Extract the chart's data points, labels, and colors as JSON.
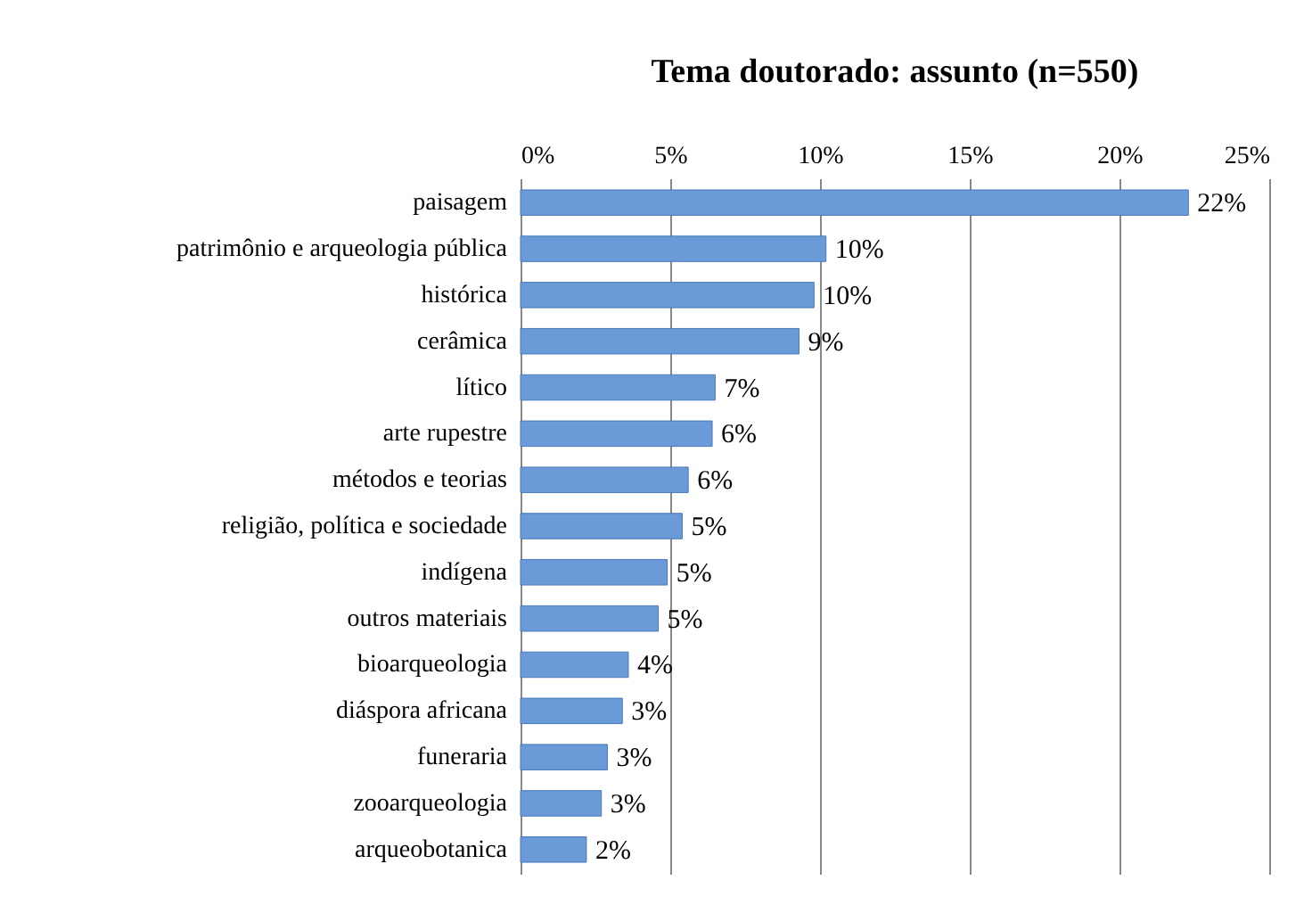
{
  "chart_data": {
    "type": "bar",
    "orientation": "horizontal",
    "title": "Tema doutorado: assunto (n=550)",
    "categories": [
      "paisagem",
      "patrimônio e arqueologia pública",
      "histórica",
      "cerâmica",
      "lítico",
      "arte rupestre",
      "métodos e teorias",
      "religião, política e sociedade",
      "indígena",
      "outros materiais",
      "bioarqueologia",
      "diáspora africana",
      "funeraria",
      "zooarqueologia",
      "arqueobotanica"
    ],
    "values": [
      22.3,
      10.2,
      9.8,
      9.3,
      6.5,
      6.4,
      5.6,
      5.4,
      4.9,
      4.6,
      3.6,
      3.4,
      2.9,
      2.7,
      2.2
    ],
    "value_labels": [
      "22%",
      "10%",
      "10%",
      "9%",
      "7%",
      "6%",
      "6%",
      "5%",
      "5%",
      "5%",
      "4%",
      "3%",
      "3%",
      "3%",
      "2%"
    ],
    "color": "#6a9ad8",
    "xlim": [
      0,
      25
    ],
    "xticks": [
      {
        "value": 0,
        "label": "0%"
      },
      {
        "value": 5,
        "label": "5%"
      },
      {
        "value": 10,
        "label": "10%"
      },
      {
        "value": 15,
        "label": "15%"
      },
      {
        "value": 20,
        "label": "20%"
      },
      {
        "value": 25,
        "label": "25%"
      }
    ],
    "grid": "x"
  }
}
